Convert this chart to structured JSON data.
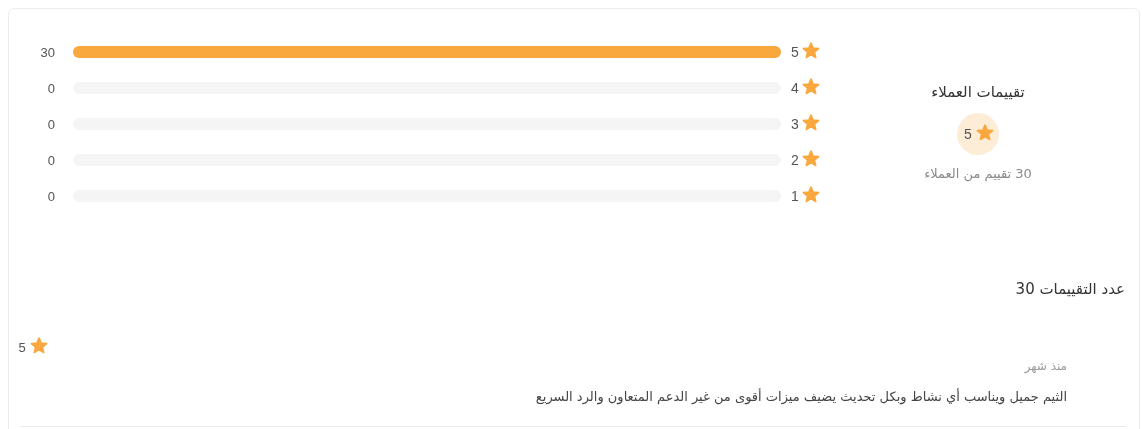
{
  "chart_data": [
    {
      "type": "other",
      "title": "تقييمات العملاء",
      "annotations": [
        "5",
        "30 تقييم من العملاء"
      ]
    },
    {
      "type": "bar",
      "orientation": "horizontal",
      "stacked": true,
      "categories": [
        "5",
        "4",
        "3",
        "2",
        "1"
      ],
      "series": [
        {
          "color": "#f9a83e",
          "values": [
            30,
            0,
            0,
            0,
            0
          ],
          "value_labels": [
            "30",
            "0",
            "0",
            "0",
            "0"
          ]
        },
        {
          "color": "#f5f5f5",
          "values": [
            0,
            30,
            30,
            30,
            30
          ]
        }
      ]
    },
    {
      "type": "other",
      "title": "عدد التقييمات 30",
      "annotations": [
        "منذ شهر",
        "الثيم جميل ويناسب أي نشاط وبكل تحديث يضيف ميزات أقوى من غير الدعم المتعاون والرد السريع",
        "5"
      ]
    }
  ]
}
